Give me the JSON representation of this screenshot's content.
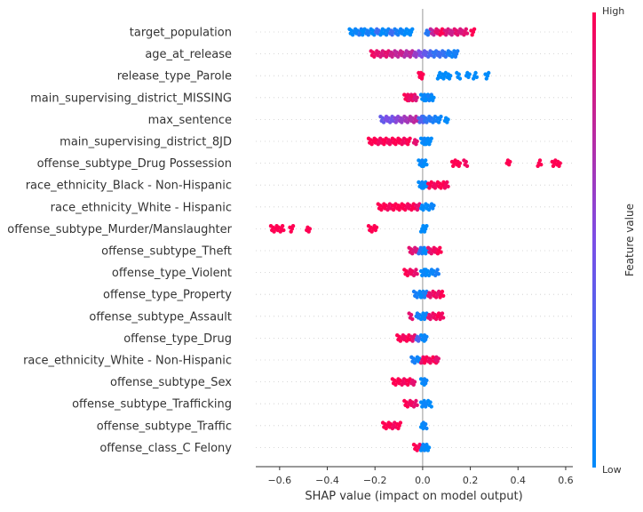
{
  "chart_data": {
    "type": "scatter",
    "subtype": "shap-beeswarm",
    "xlabel": "SHAP value (impact on model output)",
    "xlim": [
      -0.7,
      0.63
    ],
    "xticks": [
      -0.6,
      -0.4,
      -0.2,
      0.0,
      0.2,
      0.4,
      0.6
    ],
    "xtick_labels": [
      "−0.6",
      "−0.4",
      "−0.2",
      "0.0",
      "0.2",
      "0.4",
      "0.6"
    ],
    "grid": true,
    "colorbar": {
      "label": "Feature value",
      "high_label": "High",
      "low_label": "Low",
      "low_color": "#008bfb",
      "high_color": "#ff0052"
    },
    "features": [
      {
        "name": "target_population",
        "points": [
          [
            -0.3,
            0.0
          ],
          [
            -0.28,
            0.05
          ],
          [
            -0.26,
            0.15
          ],
          [
            -0.25,
            0.0
          ],
          [
            -0.23,
            0.1
          ],
          [
            -0.21,
            0.0
          ],
          [
            -0.19,
            0.25
          ],
          [
            -0.17,
            0.0
          ],
          [
            -0.15,
            0.05
          ],
          [
            -0.13,
            0.25
          ],
          [
            -0.11,
            0.1
          ],
          [
            -0.09,
            0.05
          ],
          [
            -0.07,
            0.0
          ],
          [
            -0.05,
            0.0
          ],
          [
            0.02,
            0.15
          ],
          [
            0.04,
            0.75
          ],
          [
            0.06,
            0.9
          ],
          [
            0.08,
            1.0
          ],
          [
            0.1,
            0.85
          ],
          [
            0.12,
            0.8
          ],
          [
            0.14,
            0.9
          ],
          [
            0.16,
            0.85
          ],
          [
            0.18,
            0.9
          ],
          [
            0.21,
            1.0
          ]
        ]
      },
      {
        "name": "age_at_release",
        "points": [
          [
            -0.21,
            0.95
          ],
          [
            -0.19,
            0.9
          ],
          [
            -0.17,
            0.85
          ],
          [
            -0.15,
            0.9
          ],
          [
            -0.13,
            0.8
          ],
          [
            -0.11,
            0.75
          ],
          [
            -0.09,
            0.8
          ],
          [
            -0.07,
            0.7
          ],
          [
            -0.05,
            0.75
          ],
          [
            -0.03,
            0.6
          ],
          [
            -0.01,
            0.5
          ],
          [
            0.01,
            0.4
          ],
          [
            0.03,
            0.3
          ],
          [
            0.05,
            0.2
          ],
          [
            0.07,
            0.25
          ],
          [
            0.09,
            0.2
          ],
          [
            0.11,
            0.1
          ],
          [
            0.13,
            0.05
          ],
          [
            0.14,
            0.1
          ]
        ]
      },
      {
        "name": "release_type_Parole",
        "points": [
          [
            -0.01,
            1.0
          ],
          [
            -0.005,
            1.0
          ],
          [
            0.07,
            0.0
          ],
          [
            0.09,
            0.0
          ],
          [
            0.11,
            0.0
          ],
          [
            0.15,
            0.0
          ],
          [
            0.19,
            0.0
          ],
          [
            0.22,
            0.0
          ],
          [
            0.27,
            0.0
          ]
        ]
      },
      {
        "name": "main_supervising_district_MISSING",
        "points": [
          [
            -0.07,
            1.0
          ],
          [
            -0.06,
            0.95
          ],
          [
            -0.05,
            0.9
          ],
          [
            -0.04,
            0.95
          ],
          [
            -0.03,
            0.85
          ],
          [
            0.0,
            0.0
          ],
          [
            0.01,
            0.05
          ],
          [
            0.02,
            0.0
          ],
          [
            0.03,
            0.1
          ],
          [
            0.04,
            0.0
          ]
        ]
      },
      {
        "name": "max_sentence",
        "points": [
          [
            -0.17,
            0.4
          ],
          [
            -0.15,
            0.5
          ],
          [
            -0.13,
            0.45
          ],
          [
            -0.11,
            0.55
          ],
          [
            -0.09,
            0.6
          ],
          [
            -0.07,
            0.65
          ],
          [
            -0.05,
            0.7
          ],
          [
            -0.03,
            0.75
          ],
          [
            -0.01,
            0.3
          ],
          [
            0.0,
            0.35
          ],
          [
            0.01,
            0.2
          ],
          [
            0.03,
            0.15
          ],
          [
            0.05,
            0.1
          ],
          [
            0.07,
            0.05
          ],
          [
            0.1,
            0.0
          ]
        ]
      },
      {
        "name": "main_supervising_district_8JD",
        "points": [
          [
            -0.22,
            1.0
          ],
          [
            -0.2,
            1.0
          ],
          [
            -0.18,
            0.95
          ],
          [
            -0.16,
            1.0
          ],
          [
            -0.14,
            0.95
          ],
          [
            -0.12,
            1.0
          ],
          [
            -0.1,
            1.0
          ],
          [
            -0.08,
            0.95
          ],
          [
            -0.06,
            1.0
          ],
          [
            -0.03,
            0.9
          ],
          [
            0.0,
            0.0
          ],
          [
            0.01,
            0.05
          ],
          [
            0.02,
            0.0
          ],
          [
            0.03,
            0.0
          ]
        ]
      },
      {
        "name": "offense_subtype_Drug Possession",
        "points": [
          [
            -0.01,
            0.0
          ],
          [
            0.0,
            0.05
          ],
          [
            0.01,
            0.0
          ],
          [
            0.13,
            1.0
          ],
          [
            0.15,
            1.0
          ],
          [
            0.18,
            0.95
          ],
          [
            0.36,
            1.0
          ],
          [
            0.49,
            1.0
          ],
          [
            0.55,
            1.0
          ],
          [
            0.57,
            1.0
          ]
        ]
      },
      {
        "name": "race_ethnicity_Black - Non-Hispanic",
        "points": [
          [
            -0.01,
            0.0
          ],
          [
            0.0,
            0.05
          ],
          [
            0.01,
            0.0
          ],
          [
            0.03,
            1.0
          ],
          [
            0.05,
            0.95
          ],
          [
            0.07,
            1.0
          ],
          [
            0.09,
            1.0
          ],
          [
            0.1,
            0.95
          ]
        ]
      },
      {
        "name": "race_ethnicity_White - Hispanic",
        "points": [
          [
            -0.18,
            1.0
          ],
          [
            -0.16,
            1.0
          ],
          [
            -0.14,
            0.95
          ],
          [
            -0.12,
            1.0
          ],
          [
            -0.1,
            1.0
          ],
          [
            -0.08,
            1.0
          ],
          [
            -0.06,
            0.95
          ],
          [
            -0.04,
            1.0
          ],
          [
            -0.02,
            0.9
          ],
          [
            0.0,
            0.0
          ],
          [
            0.02,
            0.0
          ],
          [
            0.04,
            0.05
          ]
        ]
      },
      {
        "name": "offense_subtype_Murder/Manslaughter",
        "points": [
          [
            -0.63,
            1.0
          ],
          [
            -0.61,
            1.0
          ],
          [
            -0.59,
            1.0
          ],
          [
            -0.55,
            1.0
          ],
          [
            -0.48,
            1.0
          ],
          [
            -0.22,
            1.0
          ],
          [
            -0.2,
            1.0
          ],
          [
            0.0,
            0.0
          ],
          [
            0.01,
            0.0
          ]
        ]
      },
      {
        "name": "offense_subtype_Theft",
        "points": [
          [
            -0.05,
            0.9
          ],
          [
            -0.03,
            0.85
          ],
          [
            -0.01,
            0.2
          ],
          [
            0.0,
            0.1
          ],
          [
            0.01,
            0.0
          ],
          [
            0.03,
            0.9
          ],
          [
            0.05,
            0.95
          ],
          [
            0.07,
            1.0
          ]
        ]
      },
      {
        "name": "offense_type_Violent",
        "points": [
          [
            -0.07,
            1.0
          ],
          [
            -0.05,
            0.95
          ],
          [
            -0.03,
            0.9
          ],
          [
            0.0,
            0.0
          ],
          [
            0.01,
            0.05
          ],
          [
            0.02,
            0.0
          ],
          [
            0.04,
            0.05
          ],
          [
            0.06,
            0.1
          ]
        ]
      },
      {
        "name": "offense_type_Property",
        "points": [
          [
            -0.03,
            0.1
          ],
          [
            -0.01,
            0.05
          ],
          [
            0.0,
            0.0
          ],
          [
            0.01,
            0.1
          ],
          [
            0.03,
            0.9
          ],
          [
            0.05,
            0.95
          ],
          [
            0.07,
            0.9
          ],
          [
            0.08,
            1.0
          ]
        ]
      },
      {
        "name": "offense_subtype_Assault",
        "points": [
          [
            -0.05,
            0.9
          ],
          [
            -0.02,
            0.1
          ],
          [
            0.0,
            0.0
          ],
          [
            0.01,
            0.05
          ],
          [
            0.03,
            0.9
          ],
          [
            0.05,
            0.95
          ],
          [
            0.07,
            1.0
          ],
          [
            0.08,
            0.95
          ]
        ]
      },
      {
        "name": "offense_type_Drug",
        "points": [
          [
            -0.1,
            1.0
          ],
          [
            -0.08,
            0.95
          ],
          [
            -0.06,
            1.0
          ],
          [
            -0.04,
            0.9
          ],
          [
            -0.02,
            0.3
          ],
          [
            0.0,
            0.0
          ],
          [
            0.01,
            0.05
          ]
        ]
      },
      {
        "name": "race_ethnicity_White - Non-Hispanic",
        "points": [
          [
            -0.04,
            0.1
          ],
          [
            -0.02,
            0.05
          ],
          [
            0.0,
            0.9
          ],
          [
            0.01,
            1.0
          ],
          [
            0.03,
            0.95
          ],
          [
            0.05,
            1.0
          ],
          [
            0.06,
            0.9
          ]
        ]
      },
      {
        "name": "offense_subtype_Sex",
        "points": [
          [
            -0.12,
            1.0
          ],
          [
            -0.1,
            1.0
          ],
          [
            -0.08,
            0.95
          ],
          [
            -0.06,
            1.0
          ],
          [
            -0.04,
            0.9
          ],
          [
            0.0,
            0.0
          ],
          [
            0.01,
            0.05
          ]
        ]
      },
      {
        "name": "offense_subtype_Trafficking",
        "points": [
          [
            -0.07,
            1.0
          ],
          [
            -0.05,
            0.95
          ],
          [
            -0.03,
            0.9
          ],
          [
            0.0,
            0.0
          ],
          [
            0.01,
            0.05
          ],
          [
            0.03,
            0.0
          ]
        ]
      },
      {
        "name": "offense_subtype_Traffic",
        "points": [
          [
            -0.16,
            1.0
          ],
          [
            -0.14,
            1.0
          ],
          [
            -0.12,
            0.95
          ],
          [
            -0.1,
            1.0
          ],
          [
            0.0,
            0.0
          ],
          [
            0.01,
            0.05
          ]
        ]
      },
      {
        "name": "offense_class_C Felony",
        "points": [
          [
            -0.03,
            1.0
          ],
          [
            -0.01,
            0.95
          ],
          [
            0.0,
            0.0
          ],
          [
            0.01,
            0.05
          ],
          [
            0.02,
            0.0
          ]
        ]
      }
    ]
  }
}
